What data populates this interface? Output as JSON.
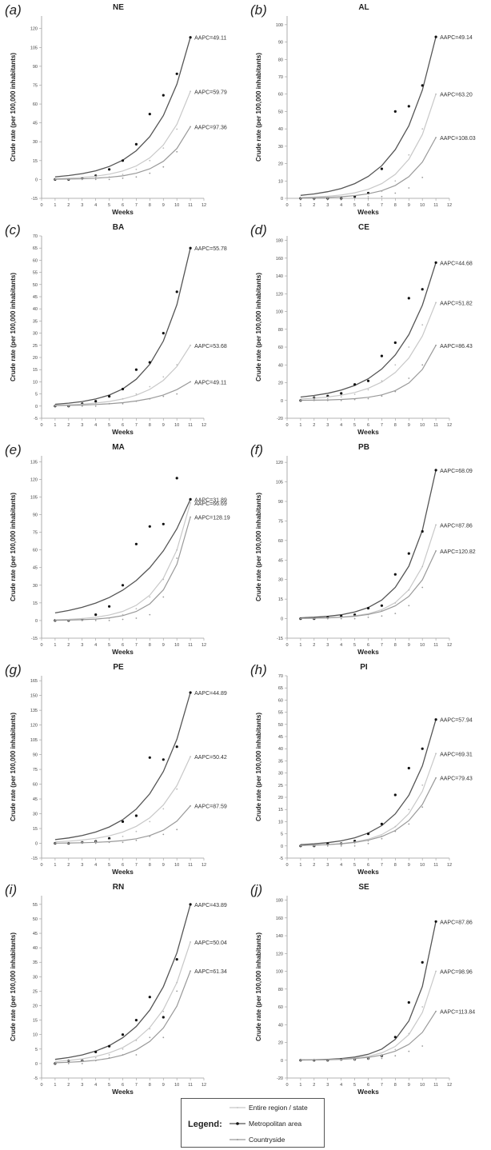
{
  "chart_data": [
    {
      "type": "line",
      "panel": "(a)",
      "title": "NE",
      "xlabel": "Weeks",
      "ylabel": "Crude rate (per 100,000 inhabitants)",
      "x": [
        1,
        2,
        3,
        4,
        5,
        6,
        7,
        8,
        9,
        10,
        11
      ],
      "xlim": [
        0,
        12
      ],
      "ylim": [
        -15,
        130
      ],
      "yticks": [
        -15,
        0,
        15,
        30,
        45,
        60,
        75,
        90,
        105,
        120
      ],
      "series": [
        {
          "name": "Metropolitan area",
          "aapc": "AAPC=49.11",
          "observed": [
            0,
            0,
            1,
            3,
            8,
            15,
            28,
            52,
            67,
            84,
            113
          ]
        },
        {
          "name": "Entire region / state",
          "aapc": "AAPC=59.79",
          "observed": [
            0,
            0,
            0,
            1,
            2,
            4,
            8,
            15,
            25,
            40,
            70
          ]
        },
        {
          "name": "Countryside",
          "aapc": "AAPC=97.36",
          "observed": [
            0,
            0,
            0,
            0,
            0,
            1,
            2,
            5,
            10,
            22,
            42
          ]
        }
      ]
    },
    {
      "type": "line",
      "panel": "(b)",
      "title": "AL",
      "xlabel": "Weeks",
      "ylabel": "Crude rate (per 100,000 inhabitants)",
      "x": [
        1,
        2,
        3,
        4,
        5,
        6,
        7,
        8,
        9,
        10,
        11
      ],
      "xlim": [
        0,
        12
      ],
      "ylim": [
        0,
        105
      ],
      "yticks": [
        0,
        10,
        20,
        30,
        40,
        50,
        60,
        70,
        80,
        90,
        100
      ],
      "series": [
        {
          "name": "Metropolitan area",
          "aapc": "AAPC=49.14",
          "observed": [
            0,
            0,
            0,
            0,
            1,
            3,
            17,
            50,
            53,
            65,
            93
          ]
        },
        {
          "name": "Entire region / state",
          "aapc": "AAPC=63.20",
          "observed": [
            0,
            0,
            0,
            0,
            0,
            1,
            4,
            10,
            25,
            40,
            60
          ]
        },
        {
          "name": "Countryside",
          "aapc": "AAPC=108.03",
          "observed": [
            0,
            0,
            0,
            0,
            0,
            0,
            1,
            3,
            6,
            12,
            35
          ]
        }
      ]
    },
    {
      "type": "line",
      "panel": "(c)",
      "title": "BA",
      "xlabel": "Weeks",
      "ylabel": "Crude rate (per 100,000 inhabitants)",
      "x": [
        1,
        2,
        3,
        4,
        5,
        6,
        7,
        8,
        9,
        10,
        11
      ],
      "xlim": [
        0,
        12
      ],
      "ylim": [
        -5,
        70
      ],
      "yticks": [
        -5,
        0,
        5,
        10,
        15,
        20,
        25,
        30,
        35,
        40,
        45,
        50,
        55,
        60,
        65,
        70
      ],
      "series": [
        {
          "name": "Metropolitan area",
          "aapc": "AAPC=55.78",
          "observed": [
            0,
            0,
            1,
            2,
            4,
            7,
            15,
            18,
            30,
            47,
            65
          ]
        },
        {
          "name": "Entire region / state",
          "aapc": "AAPC=53.68",
          "observed": [
            0,
            0,
            0,
            1,
            1,
            3,
            5,
            8,
            12,
            17,
            25
          ]
        },
        {
          "name": "Countryside",
          "aapc": "AAPC=49.11",
          "observed": [
            0,
            0,
            0,
            0,
            1,
            1,
            2,
            3,
            4,
            5,
            10
          ]
        }
      ]
    },
    {
      "type": "line",
      "panel": "(d)",
      "title": "CE",
      "xlabel": "Weeks",
      "ylabel": "Crude rate (per 100,000 inhabitants)",
      "x": [
        1,
        2,
        3,
        4,
        5,
        6,
        7,
        8,
        9,
        10,
        11
      ],
      "xlim": [
        0,
        12
      ],
      "ylim": [
        -20,
        185
      ],
      "yticks": [
        -20,
        0,
        20,
        40,
        60,
        80,
        100,
        120,
        140,
        160,
        180
      ],
      "series": [
        {
          "name": "Metropolitan area",
          "aapc": "AAPC=44.68",
          "observed": [
            0,
            3,
            5,
            8,
            18,
            22,
            50,
            65,
            115,
            125,
            155
          ]
        },
        {
          "name": "Entire region / state",
          "aapc": "AAPC=51.82",
          "observed": [
            0,
            1,
            2,
            4,
            7,
            12,
            22,
            40,
            60,
            85,
            110
          ]
        },
        {
          "name": "Countryside",
          "aapc": "AAPC=86.43",
          "observed": [
            0,
            0,
            0,
            0,
            1,
            2,
            5,
            10,
            25,
            40,
            62
          ]
        }
      ]
    },
    {
      "type": "line",
      "panel": "(e)",
      "title": "MA",
      "xlabel": "Weeks",
      "ylabel": "Crude rate (per 100,000 inhabitants)",
      "x": [
        1,
        2,
        3,
        4,
        5,
        6,
        7,
        8,
        9,
        10,
        11
      ],
      "xlim": [
        0,
        12
      ],
      "ylim": [
        -15,
        140
      ],
      "yticks": [
        -15,
        0,
        15,
        30,
        45,
        60,
        75,
        90,
        105,
        120,
        135
      ],
      "series": [
        {
          "name": "Metropolitan area",
          "aapc": "AAPC=31.89",
          "observed": [
            0,
            0,
            1,
            5,
            12,
            30,
            65,
            80,
            82,
            121,
            103
          ]
        },
        {
          "name": "Entire region / state",
          "aapc": "AAPC=66.69",
          "observed": [
            0,
            0,
            0,
            1,
            2,
            5,
            10,
            20,
            35,
            60,
            100
          ]
        },
        {
          "name": "Countryside",
          "aapc": "AAPC=128.19",
          "observed": [
            0,
            0,
            0,
            0,
            0,
            1,
            2,
            5,
            20,
            53,
            88
          ]
        }
      ]
    },
    {
      "type": "line",
      "panel": "(f)",
      "title": "PB",
      "xlabel": "Weeks",
      "ylabel": "Crude rate (per 100,000 inhabitants)",
      "x": [
        1,
        2,
        3,
        4,
        5,
        6,
        7,
        8,
        9,
        10,
        11
      ],
      "xlim": [
        0,
        12
      ],
      "ylim": [
        -15,
        125
      ],
      "yticks": [
        -15,
        0,
        15,
        30,
        45,
        60,
        75,
        90,
        105,
        120
      ],
      "series": [
        {
          "name": "Metropolitan area",
          "aapc": "AAPC=68.09",
          "observed": [
            0,
            0,
            1,
            2,
            3,
            8,
            10,
            34,
            50,
            67,
            114
          ]
        },
        {
          "name": "Entire region / state",
          "aapc": "AAPC=87.86",
          "observed": [
            0,
            0,
            0,
            1,
            2,
            3,
            6,
            12,
            22,
            40,
            72
          ]
        },
        {
          "name": "Countryside",
          "aapc": "AAPC=120.82",
          "observed": [
            0,
            0,
            0,
            0,
            0,
            1,
            2,
            4,
            10,
            24,
            52
          ]
        }
      ]
    },
    {
      "type": "line",
      "panel": "(g)",
      "title": "PE",
      "xlabel": "Weeks",
      "ylabel": "Crude rate (per 100,000 inhabitants)",
      "x": [
        1,
        2,
        3,
        4,
        5,
        6,
        7,
        8,
        9,
        10,
        11
      ],
      "xlim": [
        0,
        12
      ],
      "ylim": [
        -15,
        170
      ],
      "yticks": [
        -15,
        0,
        15,
        30,
        45,
        60,
        75,
        90,
        105,
        120,
        135,
        150,
        165
      ],
      "series": [
        {
          "name": "Metropolitan area",
          "aapc": "AAPC=44.89",
          "observed": [
            0,
            0,
            1,
            2,
            5,
            22,
            28,
            87,
            85,
            98,
            153
          ]
        },
        {
          "name": "Entire region / state",
          "aapc": "AAPC=50.42",
          "observed": [
            0,
            0,
            1,
            2,
            4,
            7,
            12,
            22,
            35,
            55,
            88
          ]
        },
        {
          "name": "Countryside",
          "aapc": "AAPC=87.59",
          "observed": [
            0,
            0,
            0,
            0,
            1,
            1,
            3,
            7,
            9,
            14,
            38
          ]
        }
      ]
    },
    {
      "type": "line",
      "panel": "(h)",
      "title": "PI",
      "xlabel": "Weeks",
      "ylabel": "Crude rate (per 100,000 inhabitants)",
      "x": [
        1,
        2,
        3,
        4,
        5,
        6,
        7,
        8,
        9,
        10,
        11
      ],
      "xlim": [
        0,
        12
      ],
      "ylim": [
        -5,
        70
      ],
      "yticks": [
        -5,
        0,
        5,
        10,
        15,
        20,
        25,
        30,
        35,
        40,
        45,
        50,
        55,
        60,
        65,
        70
      ],
      "series": [
        {
          "name": "Metropolitan area",
          "aapc": "AAPC=57.94",
          "observed": [
            0,
            0,
            1,
            1,
            2,
            5,
            9,
            21,
            32,
            40,
            52
          ]
        },
        {
          "name": "Entire region / state",
          "aapc": "AAPC=69.31",
          "observed": [
            0,
            0,
            0,
            1,
            1,
            2,
            4,
            8,
            15,
            25,
            38
          ]
        },
        {
          "name": "Countryside",
          "aapc": "AAPC=79.43",
          "observed": [
            0,
            0,
            0,
            0,
            0,
            1,
            3,
            6,
            9,
            16,
            28
          ]
        }
      ]
    },
    {
      "type": "line",
      "panel": "(i)",
      "title": "RN",
      "xlabel": "Weeks",
      "ylabel": "Crude rate (per 100,000 inhabitants)",
      "x": [
        1,
        2,
        3,
        4,
        5,
        6,
        7,
        8,
        9,
        10,
        11
      ],
      "xlim": [
        0,
        12
      ],
      "ylim": [
        -5,
        58
      ],
      "yticks": [
        -5,
        0,
        5,
        10,
        15,
        20,
        25,
        30,
        35,
        40,
        45,
        50,
        55
      ],
      "series": [
        {
          "name": "Metropolitan area",
          "aapc": "AAPC=43.89",
          "observed": [
            0,
            1,
            1,
            4,
            6,
            10,
            15,
            23,
            16,
            36,
            55
          ]
        },
        {
          "name": "Entire region / state",
          "aapc": "AAPC=50.04",
          "observed": [
            0,
            0,
            1,
            2,
            3,
            5,
            8,
            12,
            18,
            28,
            42
          ]
        },
        {
          "name": "Countryside",
          "aapc": "AAPC=61.34",
          "observed": [
            0,
            0,
            0,
            1,
            2,
            3,
            3,
            9,
            9,
            25,
            32
          ]
        }
      ]
    },
    {
      "type": "line",
      "panel": "(j)",
      "title": "SE",
      "xlabel": "Weeks",
      "ylabel": "Crude rate (per 100,000 inhabitants)",
      "x": [
        1,
        2,
        3,
        4,
        5,
        6,
        7,
        8,
        9,
        10,
        11
      ],
      "xlim": [
        0,
        12
      ],
      "ylim": [
        -20,
        185
      ],
      "yticks": [
        -20,
        0,
        20,
        40,
        60,
        80,
        100,
        120,
        140,
        160,
        180
      ],
      "series": [
        {
          "name": "Metropolitan area",
          "aapc": "AAPC=87.86",
          "observed": [
            0,
            0,
            0,
            1,
            1,
            2,
            5,
            26,
            65,
            110,
            156
          ]
        },
        {
          "name": "Entire region / state",
          "aapc": "AAPC=98.96",
          "observed": [
            0,
            0,
            0,
            0,
            1,
            2,
            5,
            12,
            30,
            60,
            100
          ]
        },
        {
          "name": "Countryside",
          "aapc": "AAPC=113.84",
          "observed": [
            0,
            0,
            0,
            0,
            0,
            1,
            2,
            5,
            10,
            16,
            55
          ]
        }
      ]
    }
  ],
  "legend": {
    "title": "Legend:",
    "items": [
      {
        "label": "Entire region / state",
        "color": "#c8c8c8"
      },
      {
        "label": "Metropolitan area",
        "color": "#555555"
      },
      {
        "label": "Countryside",
        "color": "#999999"
      }
    ]
  },
  "colors": {
    "metro": "#555555",
    "region": "#c8c8c8",
    "countryside": "#999999",
    "axis": "#9a9a9a"
  }
}
